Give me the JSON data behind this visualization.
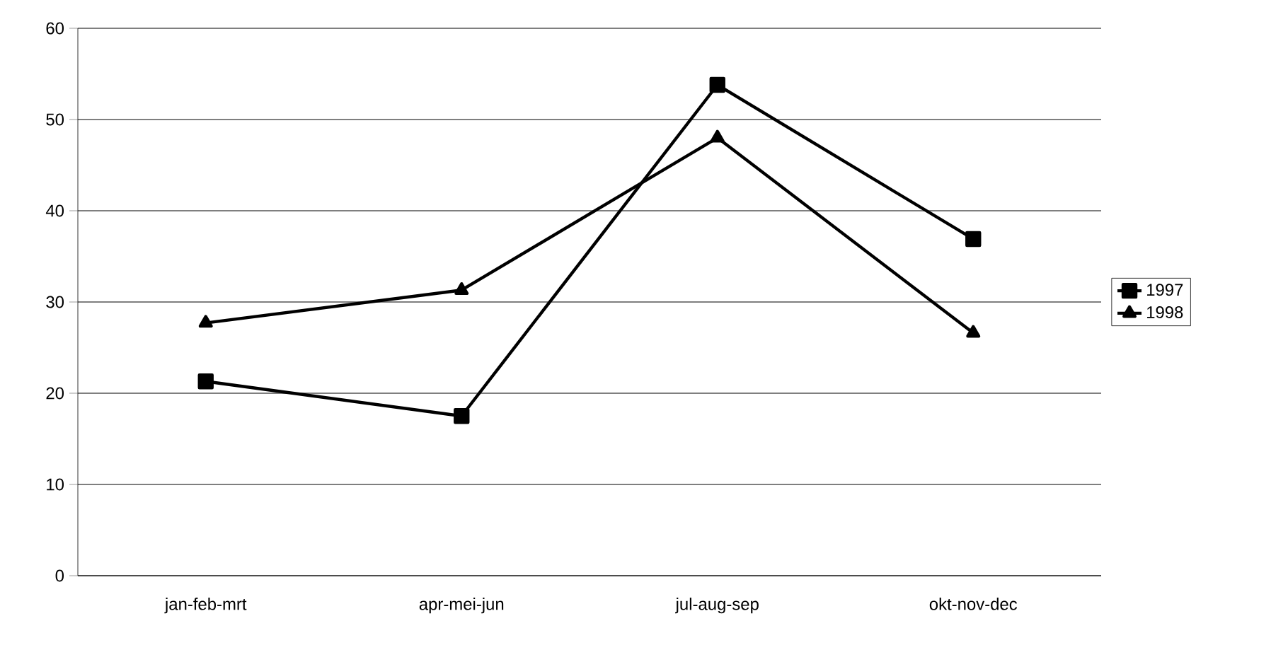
{
  "chart_data": {
    "type": "line",
    "categories": [
      "jan-feb-mrt",
      "apr-mei-jun",
      "jul-aug-sep",
      "okt-nov-dec"
    ],
    "series": [
      {
        "name": "1997",
        "color": "#000000",
        "marker": "square",
        "values": [
          21.3,
          17.5,
          53.8,
          36.9
        ]
      },
      {
        "name": "1998",
        "color": "#000000",
        "marker": "triangle",
        "values": [
          27.7,
          31.3,
          48.0,
          26.6
        ]
      }
    ],
    "ylim": [
      0,
      60
    ],
    "yticks": [
      0,
      10,
      20,
      30,
      40,
      50,
      60
    ],
    "grid": "y",
    "legend": "right",
    "line_style": "solid"
  }
}
